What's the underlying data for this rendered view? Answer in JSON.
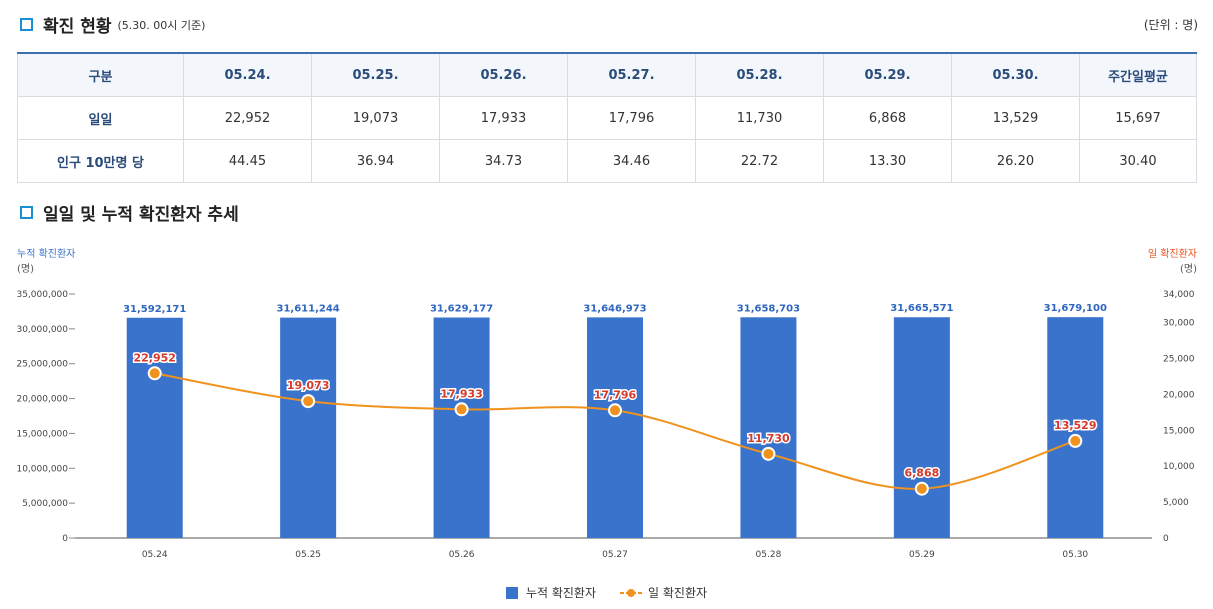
{
  "header": {
    "title": "확진 현황",
    "subtitle": "(5.30. 00시 기준)",
    "unit": "(단위 : 명)"
  },
  "table": {
    "columns": [
      "구분",
      "05.24.",
      "05.25.",
      "05.26.",
      "05.27.",
      "05.28.",
      "05.29.",
      "05.30.",
      "주간일평균"
    ],
    "rows": [
      {
        "label": "일일",
        "values": [
          "22,952",
          "19,073",
          "17,933",
          "17,796",
          "11,730",
          "6,868",
          "13,529",
          "15,697"
        ]
      },
      {
        "label": "인구 10만명 당",
        "values": [
          "44.45",
          "36.94",
          "34.73",
          "34.46",
          "22.72",
          "13.30",
          "26.20",
          "30.40"
        ]
      }
    ]
  },
  "trend": {
    "title": "일일 및 누적 확진환자 추세"
  },
  "colors": {
    "bar": "#3a73cc",
    "line": "#f0921e",
    "left_axis_title": "#3a73cc",
    "right_axis_title": "#e8541e"
  },
  "chart_data": {
    "type": "bar",
    "categories": [
      "05.24",
      "05.25",
      "05.26",
      "05.27",
      "05.28",
      "05.29",
      "05.30"
    ],
    "series": [
      {
        "name": "누적 확진환자",
        "type": "bar",
        "axis": "left",
        "values": [
          31592171,
          31611244,
          31629177,
          31646973,
          31658703,
          31665571,
          31679100
        ],
        "labels": [
          "31,592,171",
          "31,611,244",
          "31,629,177",
          "31,646,973",
          "31,658,703",
          "31,665,571",
          "31,679,100"
        ]
      },
      {
        "name": "일 확진환자",
        "type": "line",
        "axis": "right",
        "values": [
          22952,
          19073,
          17933,
          17796,
          11730,
          6868,
          13529
        ],
        "labels": [
          "22,952",
          "19,073",
          "17,933",
          "17,796",
          "11,730",
          "6,868",
          "13,529"
        ]
      }
    ],
    "left_axis": {
      "title": "누적 확진환자",
      "unit": "(명)",
      "ylim": [
        0,
        35000000
      ],
      "ticks": [
        "35,000,000",
        "30,000,000",
        "25,000,000",
        "20,000,000",
        "15,000,000",
        "10,000,000",
        "5,000,000",
        "0"
      ]
    },
    "right_axis": {
      "title": "일 확진환자",
      "unit": "(명)",
      "ylim": [
        0,
        34000
      ],
      "ticks": [
        "34,000",
        "30,000",
        "25,000",
        "20,000",
        "15,000",
        "10,000",
        "5,000",
        "0"
      ]
    },
    "legend": [
      "누적 확진환자",
      "일 확진환자"
    ],
    "legend_position": "bottom"
  }
}
